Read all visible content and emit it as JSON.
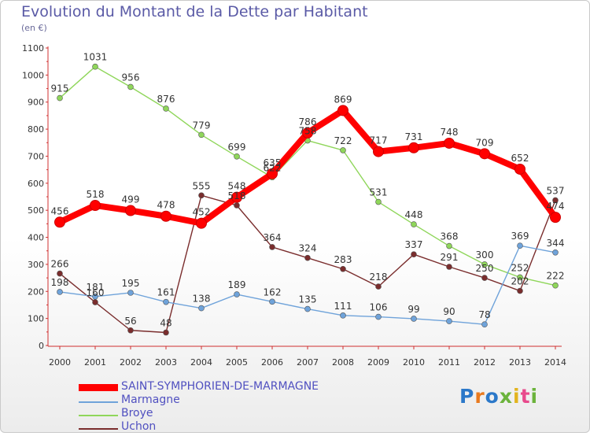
{
  "logo": {
    "text": "Proxiti",
    "colors": [
      "#2b78c9",
      "#e87a1f",
      "#2b78c9",
      "#6bb33b",
      "#e2b41f",
      "#e84a8c",
      "#6bb33b"
    ]
  },
  "chart_data": {
    "type": "line",
    "title": "Evolution du Montant de la Dette par Habitant",
    "subtitle": "(en €)",
    "xlabel": "",
    "ylabel": "",
    "ylim": [
      0,
      1100
    ],
    "yticks": [
      0,
      100,
      200,
      300,
      400,
      500,
      600,
      700,
      800,
      900,
      1000,
      1100
    ],
    "grid": false,
    "legend_position": "bottom-left",
    "x": [
      "2000",
      "2001",
      "2002",
      "2003",
      "2004",
      "2005",
      "2006",
      "2007",
      "2008",
      "2009",
      "2010",
      "2011",
      "2012",
      "2013",
      "2014"
    ],
    "series": [
      {
        "name": "SAINT-SYMPHORIEN-DE-MARMAGNE",
        "color": "#ff0000",
        "values": [
          456,
          518,
          499,
          478,
          452,
          548,
          635,
          786,
          869,
          717,
          731,
          748,
          709,
          652,
          474
        ]
      },
      {
        "name": "Marmagne",
        "color": "#6fa3da",
        "values": [
          198,
          181,
          195,
          161,
          138,
          189,
          162,
          135,
          111,
          106,
          99,
          90,
          78,
          369,
          344
        ]
      },
      {
        "name": "Broye",
        "color": "#8fd65a",
        "values": [
          915,
          1031,
          956,
          876,
          779,
          699,
          622,
          758,
          722,
          531,
          448,
          368,
          300,
          252,
          222
        ]
      },
      {
        "name": "Uchon",
        "color": "#7a2d2d",
        "values": [
          266,
          160,
          56,
          48,
          555,
          518,
          364,
          324,
          283,
          218,
          337,
          291,
          250,
          202,
          537
        ]
      }
    ]
  }
}
